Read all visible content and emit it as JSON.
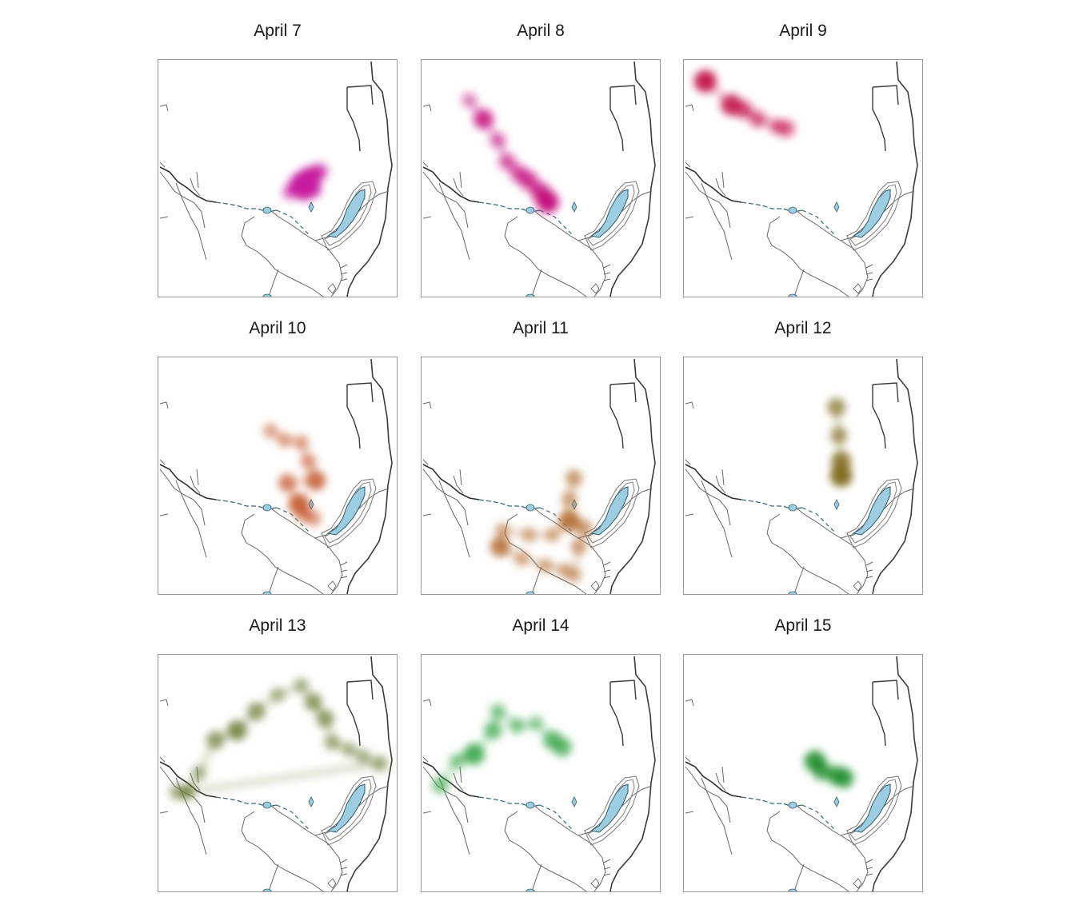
{
  "panels": [
    {
      "title": "April 7",
      "color": "#c71d9f",
      "hotspots": [
        [
          0.6,
          0.52
        ],
        [
          0.63,
          0.5
        ],
        [
          0.61,
          0.55
        ],
        [
          0.64,
          0.54
        ],
        [
          0.66,
          0.48
        ],
        [
          0.68,
          0.47
        ],
        [
          0.58,
          0.54
        ],
        [
          0.55,
          0.56
        ]
      ],
      "weights": [
        1,
        1,
        0.9,
        0.9,
        0.6,
        0.4,
        0.7,
        0.3
      ]
    },
    {
      "title": "April 8",
      "color": "#c4127e",
      "hotspots": [
        [
          0.2,
          0.17
        ],
        [
          0.26,
          0.25
        ],
        [
          0.32,
          0.34
        ],
        [
          0.36,
          0.43
        ],
        [
          0.41,
          0.48
        ],
        [
          0.45,
          0.51
        ],
        [
          0.5,
          0.56
        ],
        [
          0.53,
          0.6
        ]
      ],
      "weights": [
        0.3,
        0.8,
        0.4,
        0.5,
        0.6,
        0.7,
        0.8,
        1
      ]
    },
    {
      "title": "April 9",
      "color": "#c4164e",
      "hotspots": [
        [
          0.09,
          0.09
        ],
        [
          0.2,
          0.19
        ],
        [
          0.25,
          0.21
        ],
        [
          0.31,
          0.25
        ],
        [
          0.39,
          0.28
        ],
        [
          0.43,
          0.29
        ]
      ],
      "weights": [
        1,
        0.9,
        0.6,
        0.5,
        0.4,
        0.5
      ]
    },
    {
      "title": "April 10",
      "color": "#c45a30",
      "hotspots": [
        [
          0.47,
          0.31
        ],
        [
          0.53,
          0.35
        ],
        [
          0.6,
          0.36
        ],
        [
          0.63,
          0.44
        ],
        [
          0.66,
          0.52
        ],
        [
          0.54,
          0.53
        ],
        [
          0.59,
          0.62
        ],
        [
          0.61,
          0.66
        ],
        [
          0.65,
          0.68
        ]
      ],
      "weights": [
        0.3,
        0.3,
        0.3,
        0.4,
        0.8,
        0.6,
        0.9,
        0.5,
        0.4
      ]
    },
    {
      "title": "April 11",
      "color": "#b06a2e",
      "hotspots": [
        [
          0.64,
          0.51
        ],
        [
          0.62,
          0.6
        ],
        [
          0.62,
          0.69
        ],
        [
          0.55,
          0.75
        ],
        [
          0.45,
          0.75
        ],
        [
          0.34,
          0.73
        ],
        [
          0.33,
          0.8
        ],
        [
          0.42,
          0.85
        ],
        [
          0.52,
          0.88
        ],
        [
          0.6,
          0.9
        ],
        [
          0.64,
          0.92
        ],
        [
          0.66,
          0.8
        ],
        [
          0.68,
          0.72
        ]
      ],
      "weights": [
        0.5,
        0.4,
        0.9,
        0.3,
        0.3,
        0.3,
        0.8,
        0.3,
        0.3,
        0.3,
        0.3,
        0.4,
        0.5
      ]
    },
    {
      "title": "April 12",
      "color": "#7e6a1c",
      "hotspots": [
        [
          0.64,
          0.21
        ],
        [
          0.65,
          0.33
        ],
        [
          0.66,
          0.44
        ],
        [
          0.66,
          0.5
        ]
      ],
      "weights": [
        0.6,
        0.5,
        0.8,
        1
      ]
    },
    {
      "title": "April 13",
      "color": "#6e7d38",
      "hotspots": [
        [
          0.12,
          0.58
        ],
        [
          0.17,
          0.5
        ],
        [
          0.24,
          0.36
        ],
        [
          0.33,
          0.32
        ],
        [
          0.41,
          0.24
        ],
        [
          0.5,
          0.17
        ],
        [
          0.6,
          0.13
        ],
        [
          0.65,
          0.2
        ],
        [
          0.7,
          0.27
        ],
        [
          0.73,
          0.37
        ],
        [
          0.8,
          0.4
        ],
        [
          0.86,
          0.43
        ],
        [
          0.93,
          0.46
        ],
        [
          0.12,
          0.58
        ],
        [
          0.08,
          0.58
        ]
      ],
      "weights": [
        0.4,
        0.3,
        0.6,
        0.8,
        0.6,
        0.3,
        0.3,
        0.6,
        0.6,
        0.4,
        0.3,
        0.3,
        0.4,
        0.3,
        0.4
      ]
    },
    {
      "title": "April 14",
      "color": "#3aa64a",
      "hotspots": [
        [
          0.08,
          0.55
        ],
        [
          0.15,
          0.45
        ],
        [
          0.22,
          0.42
        ],
        [
          0.3,
          0.32
        ],
        [
          0.32,
          0.24
        ],
        [
          0.4,
          0.3
        ],
        [
          0.48,
          0.29
        ],
        [
          0.55,
          0.36
        ],
        [
          0.59,
          0.39
        ]
      ],
      "weights": [
        0.5,
        0.4,
        0.9,
        0.6,
        0.4,
        0.4,
        0.3,
        0.7,
        0.7
      ]
    },
    {
      "title": "April 15",
      "color": "#1c8c2a",
      "hotspots": [
        [
          0.55,
          0.45
        ],
        [
          0.58,
          0.49
        ],
        [
          0.64,
          0.51
        ],
        [
          0.67,
          0.52
        ]
      ],
      "weights": [
        0.9,
        0.7,
        0.7,
        0.8
      ]
    }
  ]
}
